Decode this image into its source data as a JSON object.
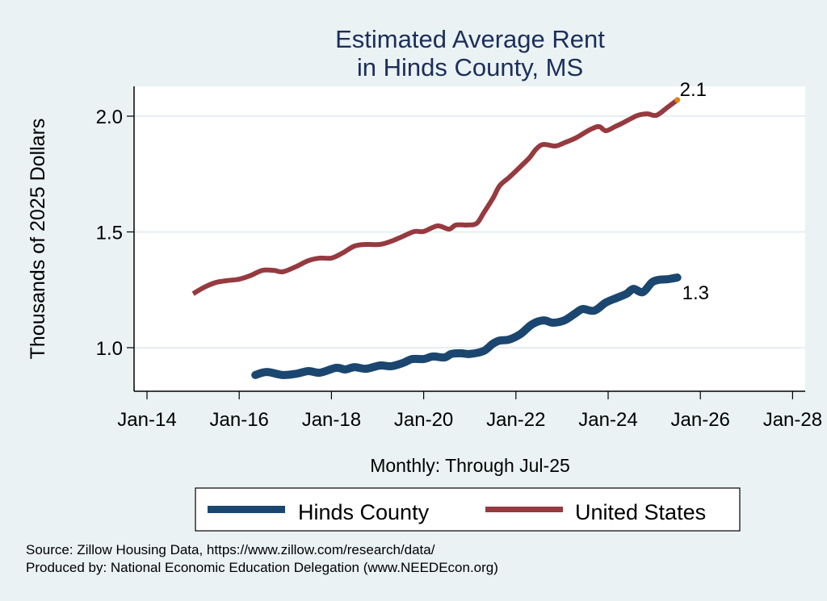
{
  "chart_data": {
    "type": "line",
    "title": [
      "Estimated Average Rent",
      "in Hinds County, MS"
    ],
    "xlabel": "Monthly: Through Jul-25",
    "ylabel": "Thousands of 2025 Dollars",
    "xlim": [
      2013.75,
      2028.3
    ],
    "ylim": [
      0.81,
      2.13
    ],
    "x_ticks": [
      {
        "value": 2014,
        "label": "Jan-14"
      },
      {
        "value": 2016,
        "label": "Jan-16"
      },
      {
        "value": 2018,
        "label": "Jan-18"
      },
      {
        "value": 2020,
        "label": "Jan-20"
      },
      {
        "value": 2022,
        "label": "Jan-22"
      },
      {
        "value": 2024,
        "label": "Jan-24"
      },
      {
        "value": 2026,
        "label": "Jan-26"
      },
      {
        "value": 2028,
        "label": "Jan-28"
      }
    ],
    "y_ticks": [
      {
        "value": 1.0,
        "label": "1.0"
      },
      {
        "value": 1.5,
        "label": "1.5"
      },
      {
        "value": 2.0,
        "label": "2.0"
      }
    ],
    "grid": "horizontal",
    "legend_position": "bottom",
    "series": [
      {
        "name": "Hinds County",
        "color": "#1b4670",
        "end_label": "1.3",
        "x": [
          2016.35,
          2016.6,
          2016.95,
          2017.25,
          2017.5,
          2017.75,
          2018.1,
          2018.3,
          2018.5,
          2018.75,
          2019.05,
          2019.3,
          2019.55,
          2019.75,
          2020.0,
          2020.2,
          2020.45,
          2020.6,
          2020.8,
          2021.0,
          2021.3,
          2021.5,
          2021.65,
          2021.85,
          2022.1,
          2022.35,
          2022.6,
          2022.8,
          2023.05,
          2023.3,
          2023.45,
          2023.7,
          2023.95,
          2024.2,
          2024.4,
          2024.55,
          2024.75,
          2024.95,
          2025.1,
          2025.3,
          2025.5
        ],
        "values": [
          0.882,
          0.895,
          0.882,
          0.888,
          0.899,
          0.892,
          0.913,
          0.906,
          0.916,
          0.909,
          0.923,
          0.92,
          0.934,
          0.951,
          0.951,
          0.962,
          0.958,
          0.973,
          0.976,
          0.973,
          0.986,
          1.017,
          1.031,
          1.035,
          1.059,
          1.101,
          1.118,
          1.108,
          1.118,
          1.15,
          1.167,
          1.16,
          1.195,
          1.216,
          1.233,
          1.254,
          1.24,
          1.282,
          1.293,
          1.296,
          1.303
        ]
      },
      {
        "name": "United States",
        "color": "#963a40",
        "end_label": "2.1",
        "end_marker_color": "#e8820c",
        "x": [
          2015.0,
          2015.25,
          2015.5,
          2015.75,
          2016.0,
          2016.25,
          2016.5,
          2016.75,
          2016.95,
          2017.25,
          2017.5,
          2017.75,
          2018.0,
          2018.25,
          2018.5,
          2018.75,
          2019.05,
          2019.3,
          2019.55,
          2019.8,
          2020.0,
          2020.3,
          2020.55,
          2020.7,
          2020.95,
          2021.15,
          2021.3,
          2021.5,
          2021.65,
          2021.85,
          2022.0,
          2022.15,
          2022.3,
          2022.45,
          2022.6,
          2022.85,
          2023.05,
          2023.3,
          2023.6,
          2023.8,
          2023.95,
          2024.15,
          2024.3,
          2024.5,
          2024.65,
          2024.85,
          2025.05,
          2025.3,
          2025.5
        ],
        "values": [
          1.233,
          1.262,
          1.282,
          1.29,
          1.296,
          1.312,
          1.334,
          1.334,
          1.328,
          1.352,
          1.376,
          1.387,
          1.387,
          1.41,
          1.439,
          1.446,
          1.446,
          1.46,
          1.481,
          1.502,
          1.502,
          1.526,
          1.512,
          1.53,
          1.53,
          1.537,
          1.582,
          1.645,
          1.7,
          1.735,
          1.763,
          1.792,
          1.822,
          1.86,
          1.878,
          1.871,
          1.885,
          1.906,
          1.941,
          1.955,
          1.937,
          1.955,
          1.969,
          1.99,
          2.004,
          2.01,
          2.004,
          2.04,
          2.07
        ]
      }
    ]
  },
  "notes": {
    "source": "Source: Zillow Housing Data, https://www.zillow.com/research/data/",
    "producer": "Produced by: National Economic Education Delegation (www.NEEDEcon.org)"
  }
}
